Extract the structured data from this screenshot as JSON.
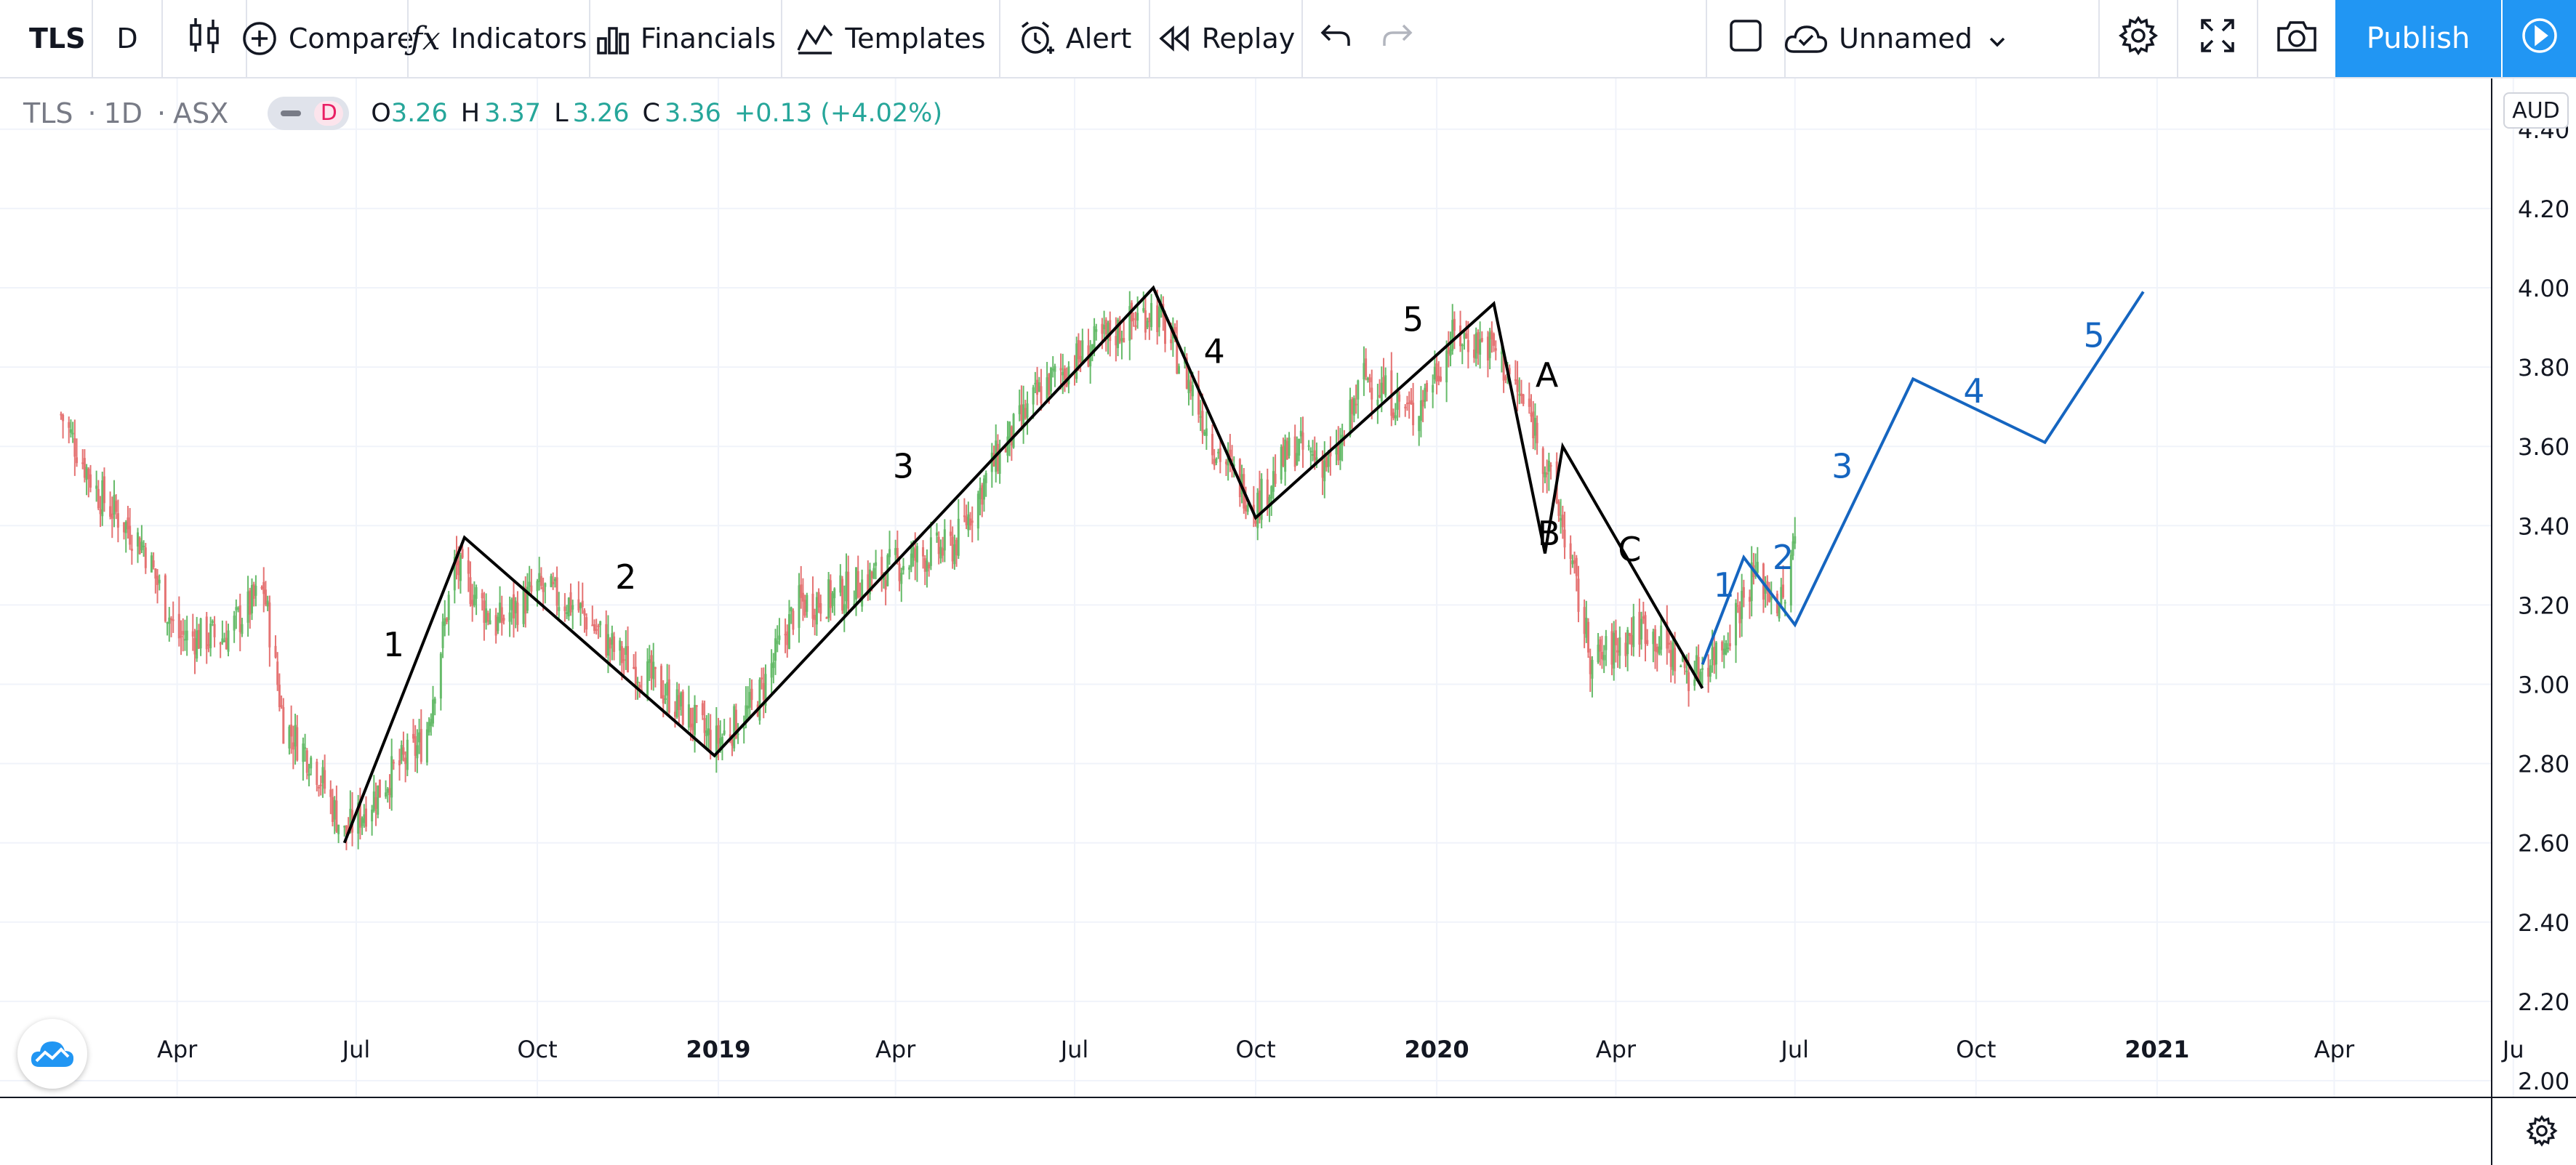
{
  "toolbar": {
    "symbol": "TLS",
    "interval": "D",
    "compare": "Compare",
    "indicators": "Indicators",
    "financials": "Financials",
    "templates": "Templates",
    "alert": "Alert",
    "replay": "Replay",
    "layout_name": "Unnamed",
    "publish": "Publish"
  },
  "legend": {
    "symbol": "TLS",
    "interval": "1D",
    "exchange": "ASX",
    "hide_badge": "D",
    "open_label": "O",
    "open": "3.26",
    "high_label": "H",
    "high": "3.37",
    "low_label": "L",
    "low": "3.26",
    "close_label": "C",
    "close": "3.36",
    "change": "+0.13 (+4.02%)"
  },
  "price_scale": {
    "currency": "AUD",
    "ticks": [
      "4.40",
      "4.20",
      "4.00",
      "3.80",
      "3.60",
      "3.40",
      "3.20",
      "3.00",
      "2.80",
      "2.60",
      "2.40",
      "2.20",
      "2.00"
    ]
  },
  "colors": {
    "up": "#26a69a",
    "down": "#ef5350",
    "candle_up": "#66bb6a",
    "candle_down": "#e57373",
    "wave_black": "#000000",
    "wave_blue": "#1565c0",
    "accent": "#2196f3"
  },
  "chart_data": {
    "type": "line",
    "symbol": "TLS",
    "ylim": [
      2.0,
      4.4
    ],
    "x_ticks": [
      "Apr",
      "Jul",
      "Oct",
      "2019",
      "Apr",
      "Jul",
      "Oct",
      "2020",
      "Apr",
      "Jul",
      "Oct",
      "2021",
      "Apr",
      "Ju"
    ],
    "x_tick_bold": [
      false,
      false,
      false,
      true,
      false,
      false,
      false,
      true,
      false,
      false,
      false,
      true,
      false,
      false
    ],
    "y_ticks": [
      4.4,
      4.2,
      4.0,
      3.8,
      3.6,
      3.4,
      3.2,
      3.0,
      2.8,
      2.6,
      2.4,
      2.2,
      2.0
    ],
    "series": [
      {
        "color": "#000000",
        "x": [
          "2018-06-25",
          "2018-08-25",
          "2018-12-30",
          "2019-08-10",
          "2019-10-01",
          "2020-01-30",
          "2020-02-25",
          "2020-03-05",
          "2020-05-15"
        ],
        "y": [
          2.6,
          3.37,
          2.82,
          4.0,
          3.42,
          3.96,
          3.33,
          3.6,
          2.99
        ]
      },
      {
        "color": "#1565c0",
        "x": [
          "2020-05-15",
          "2020-06-05",
          "2020-07-01",
          "2020-08-30",
          "2020-11-05",
          "2020-12-25"
        ],
        "y": [
          3.05,
          3.32,
          3.15,
          3.77,
          3.61,
          3.99
        ]
      }
    ],
    "wave_labels": [
      {
        "text": "1",
        "x": "2018-07-20",
        "y": 3.1,
        "color": "#000000"
      },
      {
        "text": "2",
        "x": "2018-11-15",
        "y": 3.27,
        "color": "#000000"
      },
      {
        "text": "3",
        "x": "2019-04-05",
        "y": 3.55,
        "color": "#000000"
      },
      {
        "text": "4",
        "x": "2019-09-10",
        "y": 3.84,
        "color": "#000000"
      },
      {
        "text": "5",
        "x": "2019-12-20",
        "y": 3.92,
        "color": "#000000"
      },
      {
        "text": "A",
        "x": "2020-02-26",
        "y": 3.78,
        "color": "#000000"
      },
      {
        "text": "B",
        "x": "2020-02-27",
        "y": 3.38,
        "color": "#000000"
      },
      {
        "text": "C",
        "x": "2020-04-08",
        "y": 3.34,
        "color": "#000000"
      },
      {
        "text": "1",
        "x": "2020-05-26",
        "y": 3.25,
        "color": "#1565c0"
      },
      {
        "text": "2",
        "x": "2020-06-25",
        "y": 3.32,
        "color": "#1565c0"
      },
      {
        "text": "3",
        "x": "2020-07-25",
        "y": 3.55,
        "color": "#1565c0"
      },
      {
        "text": "4",
        "x": "2020-09-30",
        "y": 3.74,
        "color": "#1565c0"
      },
      {
        "text": "5",
        "x": "2020-11-30",
        "y": 3.88,
        "color": "#1565c0"
      }
    ],
    "price_path": [
      [
        "2018-02-01",
        3.68
      ],
      [
        "2018-02-20",
        3.48
      ],
      [
        "2018-03-15",
        3.35
      ],
      [
        "2018-04-01",
        3.12
      ],
      [
        "2018-04-25",
        3.12
      ],
      [
        "2018-05-15",
        3.24
      ],
      [
        "2018-05-25",
        2.9
      ],
      [
        "2018-06-10",
        2.8
      ],
      [
        "2018-06-25",
        2.62
      ],
      [
        "2018-07-20",
        2.78
      ],
      [
        "2018-08-05",
        2.86
      ],
      [
        "2018-08-20",
        3.3
      ],
      [
        "2018-09-10",
        3.15
      ],
      [
        "2018-10-01",
        3.24
      ],
      [
        "2018-10-20",
        3.2
      ],
      [
        "2018-11-10",
        3.08
      ],
      [
        "2018-12-01",
        3.0
      ],
      [
        "2018-12-30",
        2.85
      ],
      [
        "2019-01-20",
        2.95
      ],
      [
        "2019-02-10",
        3.2
      ],
      [
        "2019-03-01",
        3.22
      ],
      [
        "2019-04-01",
        3.3
      ],
      [
        "2019-05-01",
        3.35
      ],
      [
        "2019-05-20",
        3.55
      ],
      [
        "2019-06-15",
        3.75
      ],
      [
        "2019-07-10",
        3.85
      ],
      [
        "2019-08-10",
        3.95
      ],
      [
        "2019-08-25",
        3.8
      ],
      [
        "2019-09-10",
        3.6
      ],
      [
        "2019-10-01",
        3.45
      ],
      [
        "2019-10-20",
        3.6
      ],
      [
        "2019-11-10",
        3.55
      ],
      [
        "2019-11-25",
        3.78
      ],
      [
        "2019-12-20",
        3.68
      ],
      [
        "2020-01-10",
        3.88
      ],
      [
        "2020-01-30",
        3.85
      ],
      [
        "2020-02-20",
        3.65
      ],
      [
        "2020-03-05",
        3.4
      ],
      [
        "2020-03-20",
        3.05
      ],
      [
        "2020-04-15",
        3.15
      ],
      [
        "2020-05-10",
        3.02
      ],
      [
        "2020-05-25",
        3.1
      ],
      [
        "2020-06-10",
        3.28
      ],
      [
        "2020-06-25",
        3.2
      ],
      [
        "2020-07-01",
        3.36
      ]
    ]
  }
}
